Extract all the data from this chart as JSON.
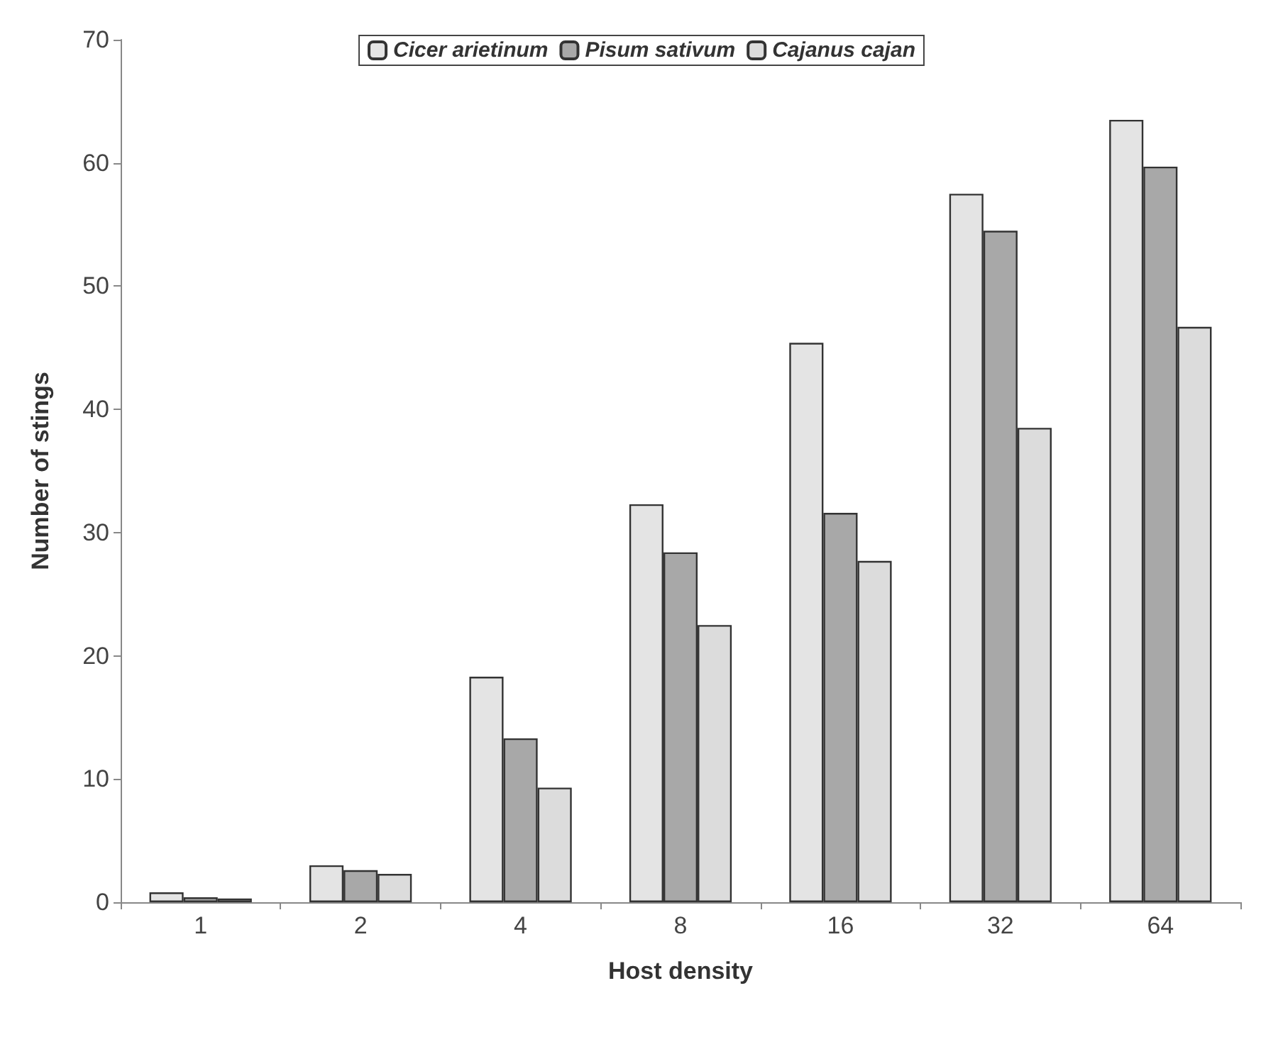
{
  "chart_data": {
    "type": "bar",
    "xlabel": "Host density",
    "ylabel": "Number of stings",
    "categories": [
      "1",
      "2",
      "4",
      "8",
      "16",
      "32",
      "64"
    ],
    "series": [
      {
        "name": "Cicer arietinum",
        "color": "#e4e4e4",
        "values": [
          0.8,
          3.0,
          18.3,
          32.3,
          45.4,
          57.5,
          63.5
        ]
      },
      {
        "name": "Pisum sativum",
        "color": "#a8a8a8",
        "values": [
          0.4,
          2.6,
          13.3,
          28.4,
          31.6,
          54.5,
          59.7
        ]
      },
      {
        "name": "Cajanus cajan",
        "color": "#dcdcdc",
        "values": [
          0.3,
          2.3,
          9.3,
          22.5,
          27.7,
          38.5,
          46.7
        ]
      }
    ],
    "ylim": [
      0,
      70
    ],
    "yticks": [
      0,
      10,
      20,
      30,
      40,
      50,
      60,
      70
    ],
    "grid": false,
    "legend": "top"
  }
}
